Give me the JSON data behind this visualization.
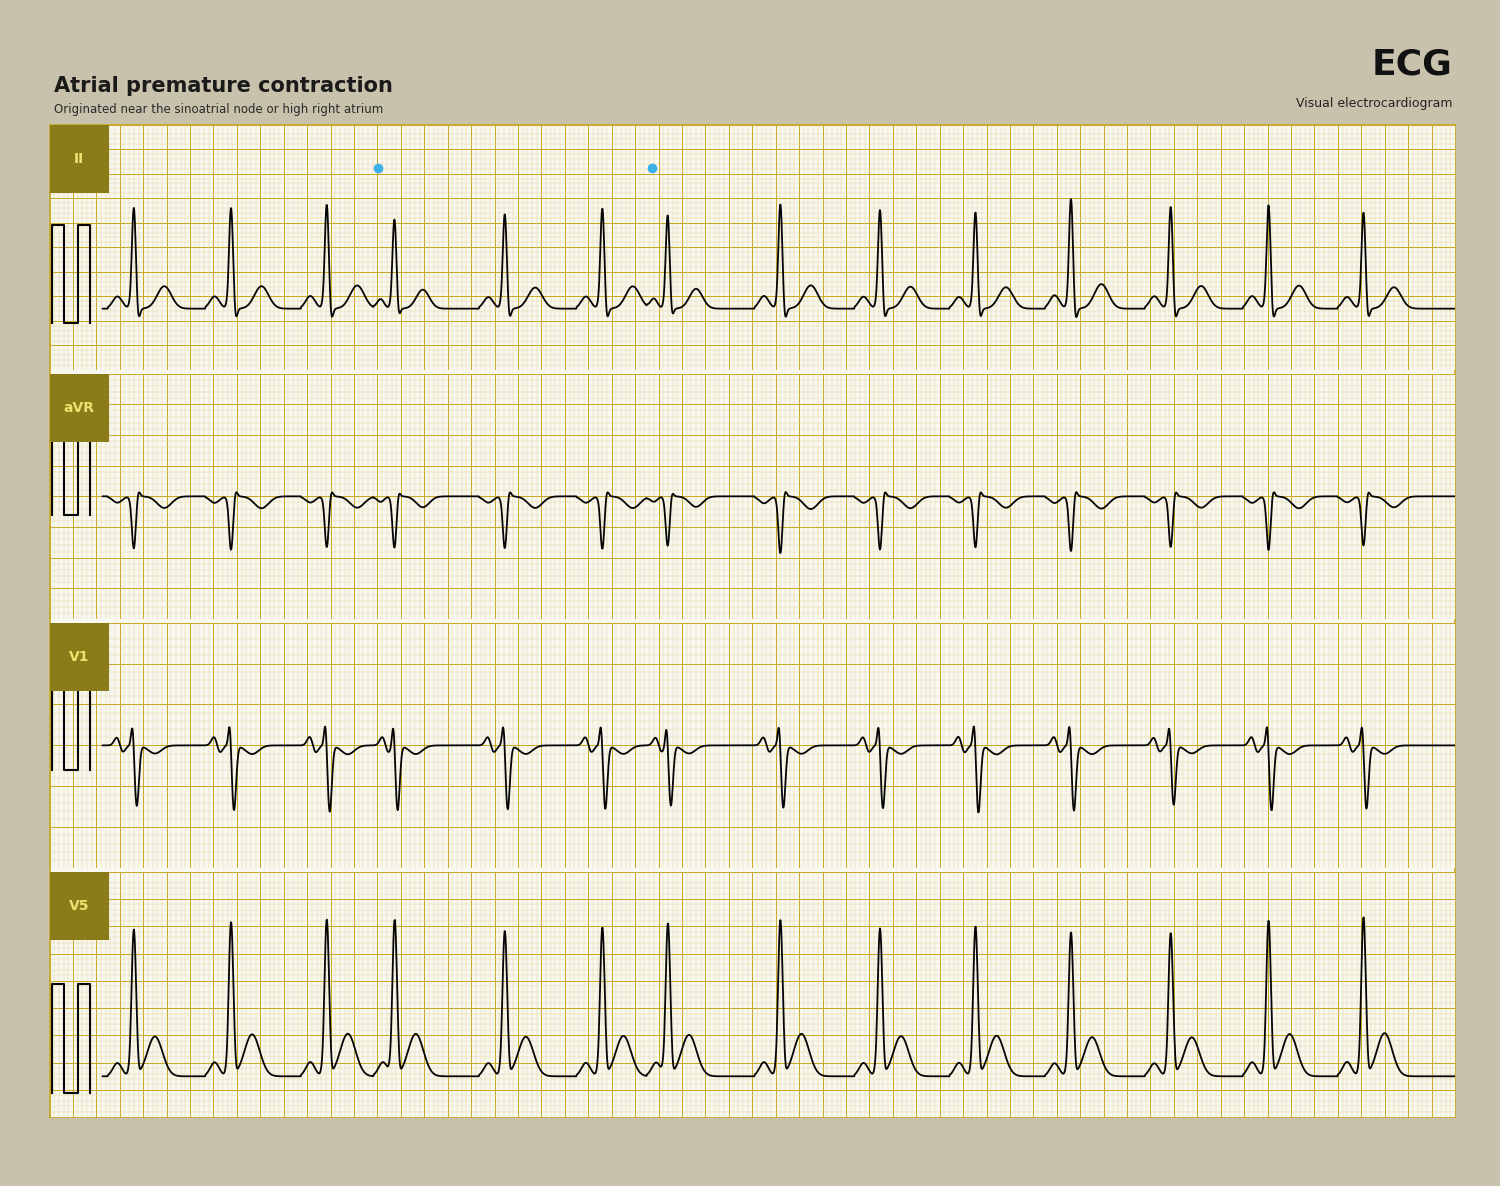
{
  "title": "Atrial premature contraction",
  "subtitle": "Originated near the sinoatrial node or high right atrium",
  "ecg_label": "ECG",
  "ecg_sublabel": "Visual electrocardiogram",
  "background_color": "#c8c2ad",
  "paper_color": "#f8f7f0",
  "grid_minor_color": "#ddd090",
  "grid_major_color": "#c8a820",
  "lead_label_bg": "#8a7c18",
  "lead_label_color": "#f0e070",
  "leads": [
    "II",
    "aVR",
    "V1",
    "V5"
  ],
  "blue_dot_color": "#3cb0e8",
  "line_color": "#050505",
  "line_width": 1.3,
  "border_color": "#c8a820"
}
